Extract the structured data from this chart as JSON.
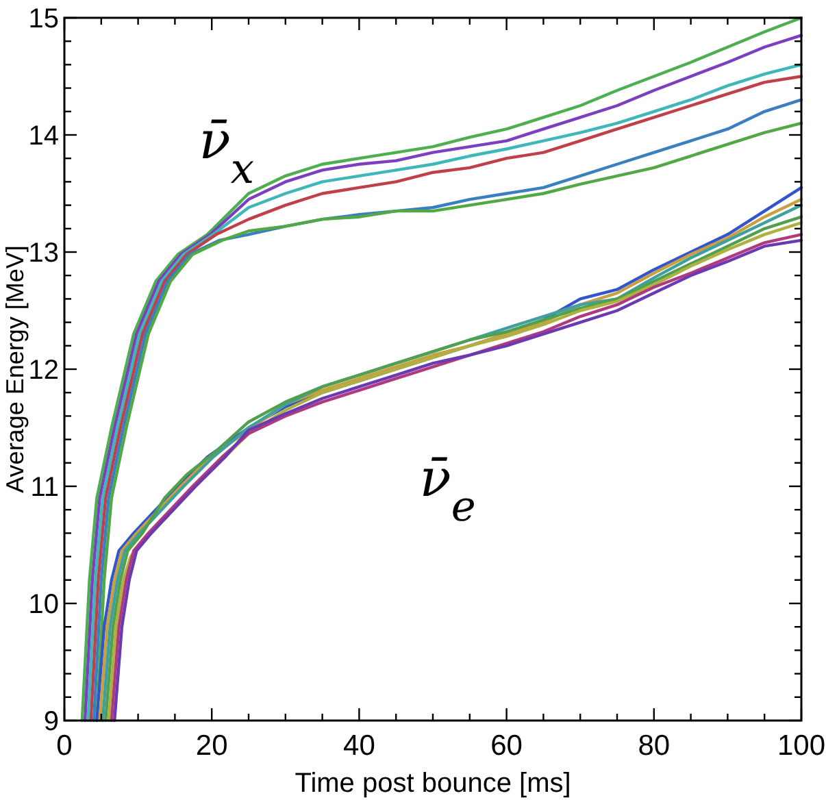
{
  "chart_data": {
    "type": "line",
    "xlabel": "Time post bounce [ms]",
    "ylabel": "Average Energy [MeV]",
    "xlim": [
      0,
      100
    ],
    "ylim": [
      9,
      15
    ],
    "xticks": [
      0,
      {
        "value": 5,
        "label": null
      },
      {
        "value": 10,
        "label": null
      },
      {
        "value": 15,
        "label": null
      },
      20,
      {
        "value": 25,
        "label": null
      },
      {
        "value": 30,
        "label": null
      },
      {
        "value": 35,
        "label": null
      },
      40,
      {
        "value": 45,
        "label": null
      },
      {
        "value": 50,
        "label": null
      },
      {
        "value": 55,
        "label": null
      },
      60,
      {
        "value": 65,
        "label": null
      },
      {
        "value": 70,
        "label": null
      },
      {
        "value": 75,
        "label": null
      },
      80,
      {
        "value": 85,
        "label": null
      },
      {
        "value": 90,
        "label": null
      },
      {
        "value": 95,
        "label": null
      },
      100
    ],
    "yticks": [
      9,
      {
        "value": 9.2,
        "label": null
      },
      {
        "value": 9.4,
        "label": null
      },
      {
        "value": 9.6,
        "label": null
      },
      {
        "value": 9.8,
        "label": null
      },
      10,
      {
        "value": 10.2,
        "label": null
      },
      {
        "value": 10.4,
        "label": null
      },
      {
        "value": 10.6,
        "label": null
      },
      {
        "value": 10.8,
        "label": null
      },
      11,
      {
        "value": 11.2,
        "label": null
      },
      {
        "value": 11.4,
        "label": null
      },
      {
        "value": 11.6,
        "label": null
      },
      {
        "value": 11.8,
        "label": null
      },
      12,
      {
        "value": 12.2,
        "label": null
      },
      {
        "value": 12.4,
        "label": null
      },
      {
        "value": 12.6,
        "label": null
      },
      {
        "value": 12.8,
        "label": null
      },
      13,
      {
        "value": 13.2,
        "label": null
      },
      {
        "value": 13.4,
        "label": null
      },
      {
        "value": 13.6,
        "label": null
      },
      {
        "value": 13.8,
        "label": null
      },
      14,
      {
        "value": 14.2,
        "label": null
      },
      {
        "value": 14.4,
        "label": null
      },
      {
        "value": 14.6,
        "label": null
      },
      {
        "value": 14.8,
        "label": null
      },
      15
    ],
    "grid": false,
    "line_style": "solid",
    "annotations": [
      "ν̄$_{x}$",
      "ν̄$_{e}$"
    ],
    "series": [
      {
        "color": "#4caf50",
        "x": [
          2.4,
          3.4,
          4.4,
          6.4,
          9.4,
          12.4,
          15.4,
          19.4,
          25,
          30,
          35,
          40,
          45,
          50,
          55,
          60,
          65,
          70,
          75,
          80,
          85,
          90,
          95,
          100
        ],
        "values": [
          9.0,
          10.2,
          10.9,
          11.5,
          12.3,
          12.75,
          12.98,
          13.15,
          13.5,
          13.65,
          13.75,
          13.8,
          13.85,
          13.9,
          13.98,
          14.05,
          14.15,
          14.25,
          14.38,
          14.5,
          14.62,
          14.75,
          14.88,
          15.0
        ]
      },
      {
        "color": "#7b3fbf",
        "x": [
          2.8,
          3.8,
          4.8,
          6.8,
          9.8,
          12.8,
          15.8,
          19.8,
          25,
          30,
          35,
          40,
          45,
          50,
          55,
          60,
          65,
          70,
          75,
          80,
          85,
          90,
          95,
          100
        ],
        "values": [
          9.0,
          10.2,
          10.9,
          11.5,
          12.3,
          12.75,
          12.98,
          13.15,
          13.45,
          13.6,
          13.7,
          13.75,
          13.78,
          13.85,
          13.9,
          13.95,
          14.05,
          14.15,
          14.25,
          14.38,
          14.5,
          14.62,
          14.75,
          14.85
        ]
      },
      {
        "color": "#3fb6b8",
        "x": [
          3.2,
          4.2,
          5.2,
          7.2,
          10.2,
          13.2,
          16.2,
          20.2,
          25,
          30,
          35,
          40,
          45,
          50,
          55,
          60,
          65,
          70,
          75,
          80,
          85,
          90,
          95,
          100
        ],
        "values": [
          9.0,
          10.2,
          10.9,
          11.5,
          12.3,
          12.75,
          12.98,
          13.15,
          13.38,
          13.5,
          13.6,
          13.65,
          13.7,
          13.75,
          13.82,
          13.88,
          13.95,
          14.02,
          14.1,
          14.2,
          14.3,
          14.42,
          14.52,
          14.6
        ]
      },
      {
        "color": "#c0404a",
        "x": [
          3.6,
          4.6,
          5.6,
          7.6,
          10.6,
          13.6,
          16.6,
          20.6,
          25,
          30,
          35,
          40,
          45,
          50,
          55,
          60,
          65,
          70,
          75,
          80,
          85,
          90,
          95,
          100
        ],
        "values": [
          9.0,
          10.2,
          10.9,
          11.5,
          12.3,
          12.75,
          12.98,
          13.15,
          13.28,
          13.4,
          13.5,
          13.55,
          13.6,
          13.68,
          13.72,
          13.8,
          13.85,
          13.95,
          14.05,
          14.15,
          14.25,
          14.35,
          14.45,
          14.5
        ]
      },
      {
        "color": "#3a7fc0",
        "x": [
          4,
          5,
          6,
          8,
          11,
          14,
          17,
          21,
          25,
          30,
          35,
          40,
          45,
          50,
          55,
          60,
          65,
          70,
          75,
          80,
          85,
          90,
          95,
          100
        ],
        "values": [
          9.0,
          10.2,
          10.9,
          11.5,
          12.3,
          12.75,
          12.98,
          13.1,
          13.15,
          13.22,
          13.28,
          13.32,
          13.35,
          13.38,
          13.45,
          13.5,
          13.55,
          13.65,
          13.75,
          13.85,
          13.95,
          14.05,
          14.2,
          14.3
        ]
      },
      {
        "color": "#52a845",
        "x": [
          4.4,
          5.4,
          6.4,
          8.4,
          11.4,
          14.4,
          17.4,
          21.4,
          25,
          30,
          35,
          40,
          45,
          50,
          55,
          60,
          65,
          70,
          75,
          80,
          85,
          90,
          95,
          100
        ],
        "values": [
          9.0,
          10.2,
          10.9,
          11.5,
          12.3,
          12.75,
          12.98,
          13.1,
          13.18,
          13.22,
          13.28,
          13.3,
          13.35,
          13.35,
          13.4,
          13.45,
          13.5,
          13.58,
          13.65,
          13.72,
          13.82,
          13.92,
          14.02,
          14.1
        ]
      },
      {
        "color": "#3355cc",
        "x": [
          4.4,
          5.4,
          6.4,
          7.4,
          9.4,
          12.4,
          15.4,
          19.4,
          25,
          30,
          35,
          40,
          45,
          50,
          55,
          60,
          65,
          70,
          75,
          80,
          85,
          90,
          95,
          100
        ],
        "values": [
          9.0,
          9.8,
          10.2,
          10.45,
          10.6,
          10.8,
          11.0,
          11.25,
          11.5,
          11.68,
          11.8,
          11.9,
          12.0,
          12.1,
          12.2,
          12.3,
          12.42,
          12.6,
          12.68,
          12.85,
          13.0,
          13.15,
          13.35,
          13.55
        ]
      },
      {
        "color": "#c8a040",
        "x": [
          4.8,
          5.8,
          6.8,
          7.8,
          9.8,
          12.8,
          15.8,
          19.8,
          25,
          30,
          35,
          40,
          45,
          50,
          55,
          60,
          65,
          70,
          75,
          80,
          85,
          90,
          95,
          100
        ],
        "values": [
          9.0,
          9.8,
          10.2,
          10.45,
          10.6,
          10.8,
          11.0,
          11.25,
          11.48,
          11.7,
          11.82,
          11.92,
          12.02,
          12.12,
          12.2,
          12.3,
          12.4,
          12.55,
          12.65,
          12.82,
          12.98,
          13.12,
          13.3,
          13.45
        ]
      },
      {
        "color": "#40a0a0",
        "x": [
          5.2,
          6.2,
          7.2,
          8.2,
          10.2,
          13.2,
          16.2,
          20.2,
          25,
          30,
          35,
          40,
          45,
          50,
          55,
          60,
          65,
          70,
          75,
          80,
          85,
          90,
          95,
          100
        ],
        "values": [
          9.0,
          9.8,
          10.2,
          10.45,
          10.6,
          10.8,
          11.0,
          11.25,
          11.5,
          11.7,
          11.85,
          11.95,
          12.05,
          12.15,
          12.25,
          12.35,
          12.45,
          12.55,
          12.6,
          12.78,
          12.95,
          13.1,
          13.25,
          13.4
        ]
      },
      {
        "color": "#50a050",
        "x": [
          5.6,
          6.6,
          7.6,
          8.6,
          10.6,
          13.6,
          16.6,
          20.6,
          25,
          30,
          35,
          40,
          45,
          50,
          55,
          60,
          65,
          70,
          75,
          80,
          85,
          90,
          95,
          100
        ],
        "values": [
          9.0,
          9.8,
          10.2,
          10.45,
          10.6,
          10.9,
          11.1,
          11.3,
          11.55,
          11.72,
          11.85,
          11.95,
          12.05,
          12.15,
          12.25,
          12.32,
          12.42,
          12.52,
          12.6,
          12.75,
          12.9,
          13.05,
          13.2,
          13.3
        ]
      },
      {
        "color": "#b0b040",
        "x": [
          6,
          7,
          8,
          9,
          11,
          14,
          17,
          21,
          25,
          30,
          35,
          40,
          45,
          50,
          55,
          60,
          65,
          70,
          75,
          80,
          85,
          90,
          95,
          100
        ],
        "values": [
          9.0,
          9.8,
          10.2,
          10.4,
          10.55,
          10.75,
          10.95,
          11.2,
          11.45,
          11.65,
          11.8,
          11.9,
          12.0,
          12.1,
          12.2,
          12.28,
          12.38,
          12.5,
          12.58,
          12.72,
          12.88,
          13.02,
          13.15,
          13.25
        ]
      },
      {
        "color": "#b03a80",
        "x": [
          6.4,
          7.4,
          8.4,
          9.4,
          11.4,
          14.4,
          17.4,
          21.4,
          25,
          30,
          35,
          40,
          45,
          50,
          55,
          60,
          65,
          70,
          75,
          80,
          85,
          90,
          95,
          100
        ],
        "values": [
          9.0,
          9.8,
          10.2,
          10.45,
          10.6,
          10.8,
          11.0,
          11.25,
          11.45,
          11.6,
          11.72,
          11.82,
          11.92,
          12.02,
          12.12,
          12.22,
          12.32,
          12.45,
          12.55,
          12.7,
          12.82,
          12.95,
          13.08,
          13.15
        ]
      },
      {
        "color": "#6a3ab0",
        "x": [
          6.8,
          7.8,
          8.8,
          9.8,
          11.8,
          14.8,
          17.8,
          21.8,
          25,
          30,
          35,
          40,
          45,
          50,
          55,
          60,
          65,
          70,
          75,
          80,
          85,
          90,
          95,
          100
        ],
        "values": [
          9.0,
          9.8,
          10.2,
          10.45,
          10.6,
          10.8,
          11.0,
          11.25,
          11.48,
          11.62,
          11.75,
          11.85,
          11.95,
          12.05,
          12.12,
          12.2,
          12.3,
          12.4,
          12.5,
          12.65,
          12.8,
          12.92,
          13.05,
          13.1
        ]
      }
    ]
  }
}
